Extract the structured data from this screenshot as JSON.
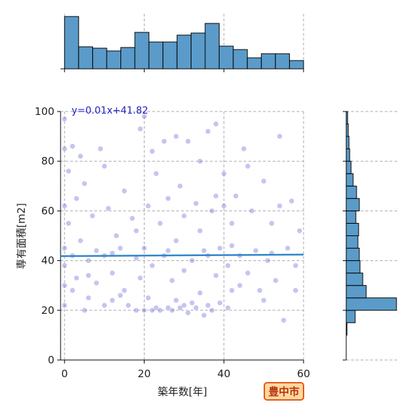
{
  "chart_data": [
    {
      "type": "scatter",
      "x_label": "築年数[年]",
      "y_label": "専有面積[m2]",
      "x": [
        0,
        0,
        0,
        0,
        0,
        0,
        0,
        1,
        1,
        2,
        2,
        3,
        3,
        4,
        5,
        5,
        6,
        6,
        7,
        8,
        8,
        9,
        10,
        10,
        11,
        12,
        12,
        13,
        14,
        15,
        15,
        16,
        17,
        18,
        18,
        19,
        19,
        20,
        20,
        21,
        21,
        22,
        22,
        23,
        23,
        24,
        24,
        25,
        25,
        26,
        26,
        27,
        27,
        28,
        28,
        29,
        29,
        30,
        30,
        31,
        31,
        32,
        32,
        33,
        33,
        34,
        34,
        35,
        35,
        36,
        36,
        37,
        37,
        38,
        38,
        39,
        39,
        40,
        40,
        41,
        41,
        42,
        42,
        43,
        44,
        45,
        46,
        47,
        48,
        49,
        50,
        51,
        52,
        53,
        54,
        55,
        56,
        57,
        58,
        59,
        2,
        6,
        10,
        14,
        18,
        22,
        26,
        30,
        34,
        38,
        42,
        46,
        50,
        54,
        58,
        4,
        12,
        20,
        28,
        36,
        44,
        52
      ],
      "y": [
        97,
        85,
        62,
        45,
        38,
        30,
        22,
        76,
        55,
        42,
        28,
        65,
        33,
        48,
        20,
        71,
        40,
        25,
        58,
        44,
        31,
        85,
        42,
        22,
        61,
        35,
        24,
        50,
        45,
        28,
        68,
        22,
        57,
        41,
        20,
        33,
        93,
        20,
        45,
        62,
        25,
        20,
        38,
        75,
        21,
        55,
        20,
        42,
        88,
        21,
        65,
        32,
        20,
        48,
        24,
        70,
        21,
        22,
        58,
        88,
        19,
        40,
        23,
        63,
        21,
        80,
        27,
        44,
        18,
        92,
        22,
        60,
        20,
        34,
        95,
        45,
        23,
        75,
        62,
        38,
        21,
        55,
        28,
        66,
        42,
        85,
        35,
        60,
        44,
        28,
        72,
        40,
        55,
        32,
        90,
        16,
        45,
        64,
        38,
        52,
        86,
        34,
        78,
        26,
        52,
        84,
        44,
        36,
        52,
        66,
        46,
        78,
        24,
        62,
        28,
        82,
        43,
        98,
        90,
        42,
        30,
        43
      ],
      "color": "#5a5ad6",
      "xlim": [
        -1,
        60
      ],
      "ylim": [
        0,
        100
      ],
      "xticks": [
        0,
        20,
        40,
        60
      ],
      "yticks": [
        0,
        20,
        40,
        60,
        80,
        100
      ],
      "grid": true,
      "fit": {
        "x": [
          -1,
          60
        ],
        "y": [
          41.81,
          42.42
        ],
        "color": "#2f86c9"
      },
      "annotation": "y=0.01x+41.82"
    },
    {
      "type": "histogram",
      "orientation": "vertical",
      "color": "#5b9bc9",
      "bins": [
        0,
        3.53,
        7.06,
        10.59,
        14.12,
        17.65,
        21.18,
        24.71,
        28.24,
        31.76,
        35.29,
        38.82,
        42.35,
        45.88,
        49.41,
        52.94,
        56.47,
        60
      ],
      "counts": [
        76,
        32,
        30,
        26,
        31,
        53,
        39,
        39,
        49,
        52,
        66,
        33,
        28,
        16,
        22,
        22,
        12
      ],
      "xlim": [
        -1,
        60
      ],
      "ylim": [
        0,
        80
      ],
      "xticks": [
        0,
        20,
        40,
        60
      ],
      "grid": true
    },
    {
      "type": "histogram",
      "orientation": "horizontal",
      "color": "#5b9bc9",
      "bins": [
        10,
        15,
        20,
        25,
        30,
        35,
        40,
        45,
        50,
        55,
        60,
        65,
        70,
        75,
        80,
        85,
        90,
        95,
        100
      ],
      "counts": [
        1,
        13,
        73,
        29,
        24,
        20,
        19,
        17,
        18,
        14,
        19,
        15,
        10,
        7,
        5,
        4,
        3,
        2
      ],
      "ylim": [
        0,
        100
      ],
      "xlim": [
        0,
        75
      ],
      "yticks": [
        0,
        20,
        40,
        60,
        80,
        100
      ],
      "grid": true
    }
  ],
  "badge": "豊中市"
}
